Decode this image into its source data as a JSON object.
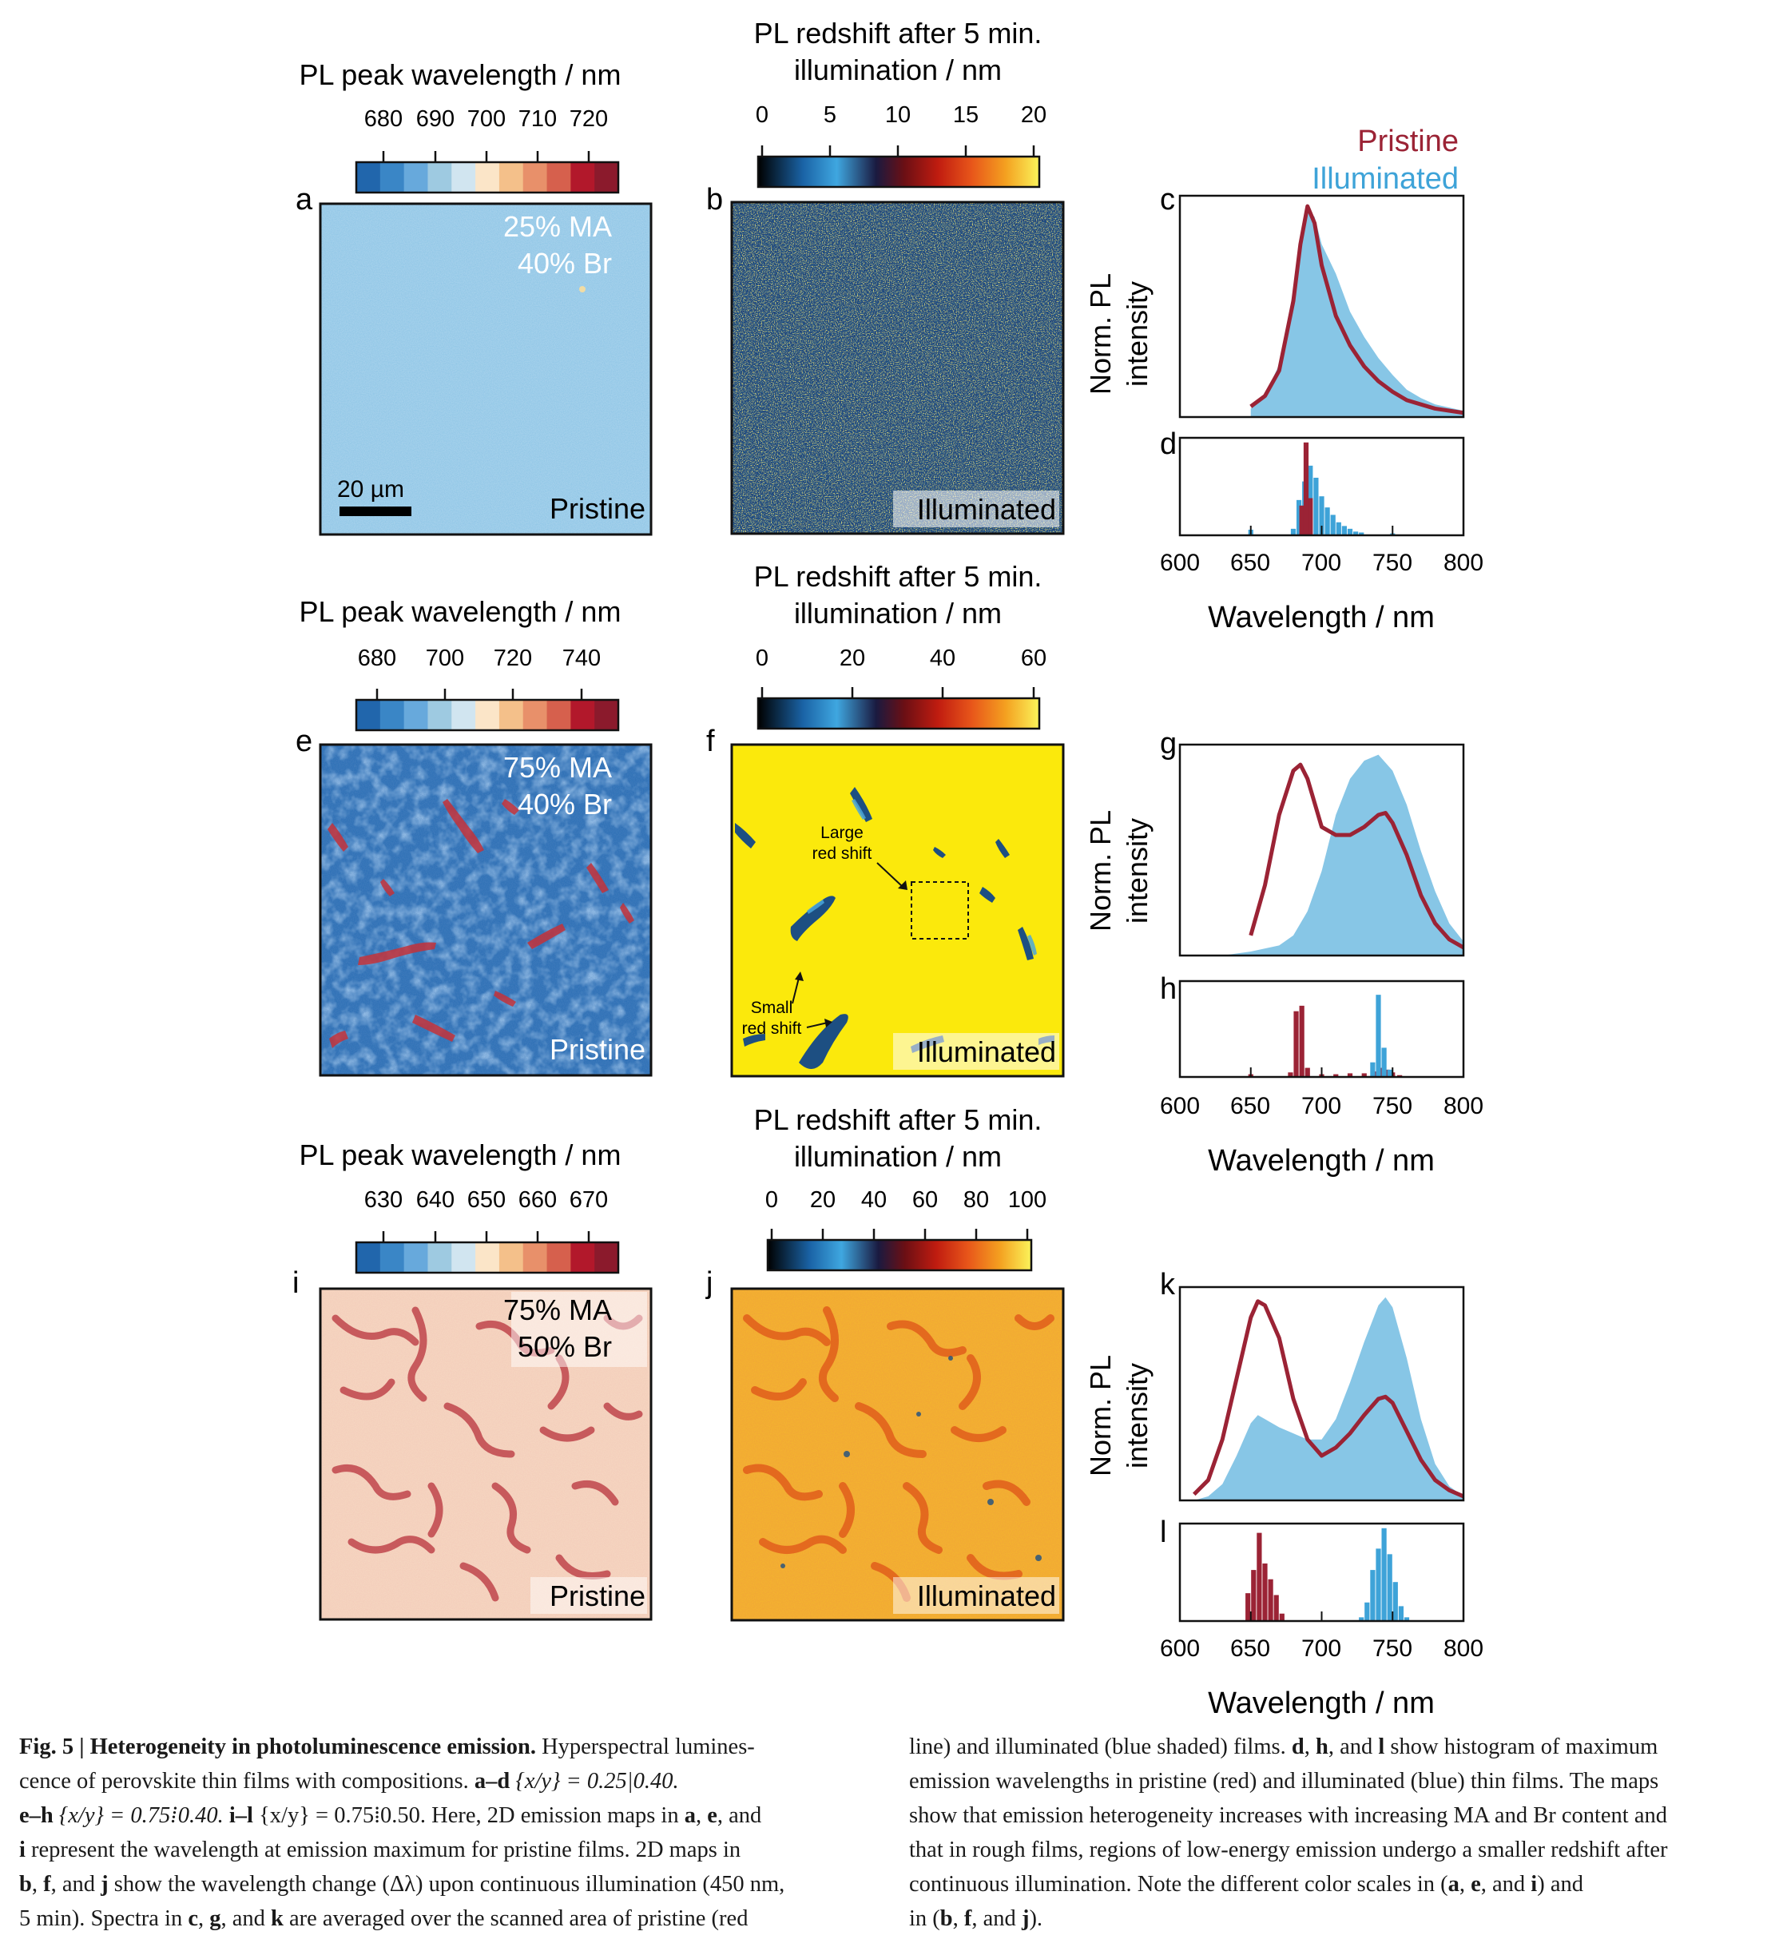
{
  "row1": {
    "map_a": {
      "panel": "a",
      "colorbar_title": "PL peak wavelength / nm",
      "ticks": [
        "680",
        "690",
        "700",
        "710",
        "720"
      ],
      "label_line1": "25% MA",
      "label_line2": "40% Br",
      "scale_label": "20 µm",
      "state": "Pristine"
    },
    "map_b": {
      "panel": "b",
      "colorbar_title_line1": "PL redshift after 5 min.",
      "colorbar_title_line2": "illumination / nm",
      "ticks": [
        "0",
        "5",
        "10",
        "15",
        "20"
      ],
      "state": "Illuminated"
    },
    "spectrum_panel": "c",
    "histogram_panel": "d"
  },
  "row2": {
    "map_e": {
      "panel": "e",
      "colorbar_title": "PL peak wavelength / nm",
      "ticks": [
        "680",
        "700",
        "720",
        "740"
      ],
      "label_line1": "75% MA",
      "label_line2": "40% Br",
      "state": "Pristine"
    },
    "map_f": {
      "panel": "f",
      "colorbar_title_line1": "PL redshift after 5 min.",
      "colorbar_title_line2": "illumination / nm",
      "ticks": [
        "0",
        "20",
        "40",
        "60"
      ],
      "annotation_large_line1": "Large",
      "annotation_large_line2": "red shift",
      "annotation_small_line1": "Small",
      "annotation_small_line2": "red shift",
      "state": "Illuminated"
    },
    "spectrum_panel": "g",
    "histogram_panel": "h"
  },
  "row3": {
    "map_i": {
      "panel": "i",
      "colorbar_title": "PL peak wavelength / nm",
      "ticks": [
        "630",
        "640",
        "650",
        "660",
        "670"
      ],
      "label_line1": "75% MA",
      "label_line2": "50% Br",
      "state": "Pristine"
    },
    "map_j": {
      "panel": "j",
      "colorbar_title_line1": "PL redshift after 5 min.",
      "colorbar_title_line2": "illumination / nm",
      "ticks": [
        "0",
        "20",
        "40",
        "60",
        "80",
        "100"
      ],
      "state": "Illuminated"
    },
    "spectrum_panel": "k",
    "histogram_panel": "l"
  },
  "legend": {
    "pristine": "Pristine",
    "illuminated": "Illuminated"
  },
  "axis": {
    "ylabel_line1": "Norm. PL",
    "ylabel_line2": "intensity",
    "xlabel": "Wavelength / nm",
    "xticks": [
      "600",
      "650",
      "700",
      "750",
      "800"
    ]
  },
  "colors": {
    "pristine": "#9b2335",
    "illuminated": "#3ea3d8",
    "illuminated_fill": "#87c6e6",
    "diverging_scale": [
      "#2166ac",
      "#3a86c6",
      "#67a9dc",
      "#9ecae1",
      "#d1e5f0",
      "#fbe5c8",
      "#f4c08a",
      "#e8906a",
      "#d6604d",
      "#b2182b",
      "#8b1a2c"
    ],
    "redshift_scale": [
      "#000000",
      "#1a63a6",
      "#3fa7e0",
      "#1a1a40",
      "#6b0f14",
      "#c01c10",
      "#e8561a",
      "#f4a020",
      "#f7e03a",
      "#fbf45a"
    ]
  },
  "chart_data": [
    {
      "panel": "c",
      "type": "area",
      "title": "",
      "xlabel": "",
      "ylabel": "Norm. PL intensity",
      "xlim": [
        600,
        800
      ],
      "ylim": [
        0,
        1.05
      ],
      "series": [
        {
          "name": "Pristine",
          "style": "line",
          "x": [
            650,
            660,
            670,
            680,
            685,
            690,
            695,
            700,
            710,
            720,
            730,
            740,
            750,
            760,
            770,
            780,
            800
          ],
          "y": [
            0.05,
            0.1,
            0.22,
            0.55,
            0.82,
            1.0,
            0.92,
            0.72,
            0.48,
            0.34,
            0.24,
            0.17,
            0.12,
            0.08,
            0.06,
            0.04,
            0.02
          ]
        },
        {
          "name": "Illuminated",
          "style": "filled",
          "x": [
            650,
            660,
            670,
            680,
            685,
            690,
            695,
            700,
            710,
            720,
            730,
            740,
            750,
            760,
            770,
            780,
            800
          ],
          "y": [
            0.04,
            0.1,
            0.25,
            0.6,
            0.85,
            0.98,
            0.95,
            0.82,
            0.68,
            0.5,
            0.38,
            0.28,
            0.2,
            0.13,
            0.09,
            0.06,
            0.03
          ]
        }
      ]
    },
    {
      "panel": "d",
      "type": "bar",
      "title": "",
      "xlabel": "Wavelength / nm",
      "ylabel": "",
      "xlim": [
        600,
        800
      ],
      "ylim": [
        0,
        1.05
      ],
      "bin_width": 3.5,
      "series": [
        {
          "name": "Illuminated",
          "x": [
            650,
            680,
            684,
            688,
            692,
            696,
            700,
            704,
            708,
            712,
            716,
            720,
            724,
            728,
            750
          ],
          "y": [
            0.06,
            0.07,
            0.38,
            0.58,
            0.75,
            0.62,
            0.42,
            0.3,
            0.22,
            0.14,
            0.1,
            0.07,
            0.04,
            0.03,
            0.02
          ]
        },
        {
          "name": "Pristine",
          "x": [
            686,
            689,
            692
          ],
          "y": [
            0.32,
            1.0,
            0.4
          ]
        }
      ]
    },
    {
      "panel": "g",
      "type": "area",
      "title": "",
      "xlabel": "",
      "ylabel": "Norm. PL intensity",
      "xlim": [
        600,
        800
      ],
      "ylim": [
        0,
        1.05
      ],
      "series": [
        {
          "name": "Pristine",
          "style": "line",
          "x": [
            650,
            660,
            670,
            680,
            685,
            690,
            700,
            710,
            720,
            730,
            740,
            745,
            750,
            760,
            770,
            780,
            790,
            800
          ],
          "y": [
            0.1,
            0.35,
            0.7,
            0.92,
            0.95,
            0.88,
            0.64,
            0.6,
            0.6,
            0.64,
            0.7,
            0.71,
            0.66,
            0.5,
            0.3,
            0.16,
            0.08,
            0.04
          ]
        },
        {
          "name": "Illuminated",
          "style": "filled",
          "x": [
            610,
            630,
            650,
            670,
            680,
            690,
            700,
            710,
            720,
            730,
            740,
            750,
            760,
            770,
            780,
            790,
            800
          ],
          "y": [
            0.0,
            0.0,
            0.02,
            0.05,
            0.1,
            0.22,
            0.42,
            0.7,
            0.88,
            0.97,
            1.0,
            0.92,
            0.75,
            0.52,
            0.32,
            0.16,
            0.07
          ]
        }
      ]
    },
    {
      "panel": "h",
      "type": "bar",
      "title": "",
      "xlabel": "Wavelength / nm",
      "ylabel": "",
      "xlim": [
        600,
        800
      ],
      "ylim": [
        0,
        1.05
      ],
      "bin_width": 3.5,
      "series": [
        {
          "name": "Pristine",
          "x": [
            650,
            678,
            682,
            686,
            690,
            700,
            710,
            720,
            730,
            738,
            742,
            746,
            750,
            755
          ],
          "y": [
            0.03,
            0.05,
            0.72,
            0.78,
            0.1,
            0.03,
            0.03,
            0.04,
            0.04,
            0.06,
            0.1,
            0.08,
            0.05,
            0.02
          ]
        },
        {
          "name": "Illuminated",
          "x": [
            736,
            740,
            744,
            748
          ],
          "y": [
            0.16,
            0.9,
            0.32,
            0.08
          ]
        }
      ]
    },
    {
      "panel": "k",
      "type": "area",
      "title": "",
      "xlabel": "",
      "ylabel": "Norm. PL intensity",
      "xlim": [
        600,
        800
      ],
      "ylim": [
        0,
        1.05
      ],
      "series": [
        {
          "name": "Pristine",
          "style": "line",
          "x": [
            610,
            620,
            630,
            640,
            650,
            655,
            660,
            670,
            680,
            690,
            700,
            710,
            720,
            730,
            740,
            745,
            750,
            760,
            770,
            780,
            790,
            800
          ],
          "y": [
            0.03,
            0.1,
            0.3,
            0.6,
            0.9,
            0.98,
            0.96,
            0.8,
            0.5,
            0.3,
            0.22,
            0.26,
            0.33,
            0.42,
            0.5,
            0.51,
            0.48,
            0.34,
            0.2,
            0.1,
            0.05,
            0.02
          ]
        },
        {
          "name": "Illuminated",
          "style": "filled",
          "x": [
            610,
            620,
            630,
            640,
            650,
            655,
            660,
            670,
            680,
            690,
            700,
            710,
            720,
            730,
            740,
            745,
            750,
            760,
            770,
            780,
            790,
            800
          ],
          "y": [
            0.0,
            0.02,
            0.08,
            0.22,
            0.38,
            0.42,
            0.4,
            0.36,
            0.33,
            0.3,
            0.3,
            0.4,
            0.58,
            0.78,
            0.96,
            1.0,
            0.95,
            0.7,
            0.4,
            0.18,
            0.07,
            0.02
          ]
        }
      ]
    },
    {
      "panel": "l",
      "type": "bar",
      "title": "",
      "xlabel": "Wavelength / nm",
      "ylabel": "",
      "xlim": [
        600,
        800
      ],
      "ylim": [
        0,
        1.05
      ],
      "bin_width": 3.5,
      "series": [
        {
          "name": "Pristine",
          "x": [
            648,
            652,
            656,
            660,
            664,
            668,
            672
          ],
          "y": [
            0.3,
            0.55,
            0.95,
            0.62,
            0.45,
            0.28,
            0.08
          ]
        },
        {
          "name": "Illuminated",
          "x": [
            728,
            732,
            736,
            740,
            744,
            748,
            752,
            756,
            760
          ],
          "y": [
            0.04,
            0.2,
            0.55,
            0.78,
            1.0,
            0.72,
            0.42,
            0.16,
            0.04
          ]
        }
      ]
    }
  ],
  "caption": {
    "label": "Fig. 5 |",
    "title": "Heterogeneity in photoluminescence emission.",
    "left": [
      "Hyperspectral lumines-",
      "cence of perovskite thin films with compositions.",
      "{x/y} = 0.25|0.40.",
      "{x/y} = 0.75⁞0.40.",
      "{x/y} = 0.75⁞0.50. Here, 2D emission maps in",
      ", and",
      "represent the wavelength at emission maximum for pristine films. 2D maps in",
      ", and",
      "show the wavelength change (Δλ) upon continuous illumination (450 nm,",
      "5 min). Spectra in",
      ", and",
      "are averaged over the scanned area of pristine (red"
    ],
    "right": [
      "line) and illuminated (blue shaded) films.",
      ", and",
      "show histogram of maximum",
      "emission wavelengths in pristine (red) and illuminated (blue) thin films. The maps",
      "show that emission heterogeneity increases with increasing MA and Br content and",
      "that in rough films, regions of low-energy emission undergo a smaller redshift after",
      "continuous illumination. Note the different color scales in (",
      ", and",
      ") and",
      "in (",
      ", and",
      ")."
    ],
    "letters": {
      "a_d": "a–d",
      "e_h": "e–h",
      "i_l": "i–l",
      "a": "a",
      "e": "e",
      "i": "i",
      "b": "b",
      "f": "f",
      "j": "j",
      "c": "c",
      "g": "g",
      "k": "k",
      "d": "d",
      "h": "h",
      "l": "l"
    }
  }
}
